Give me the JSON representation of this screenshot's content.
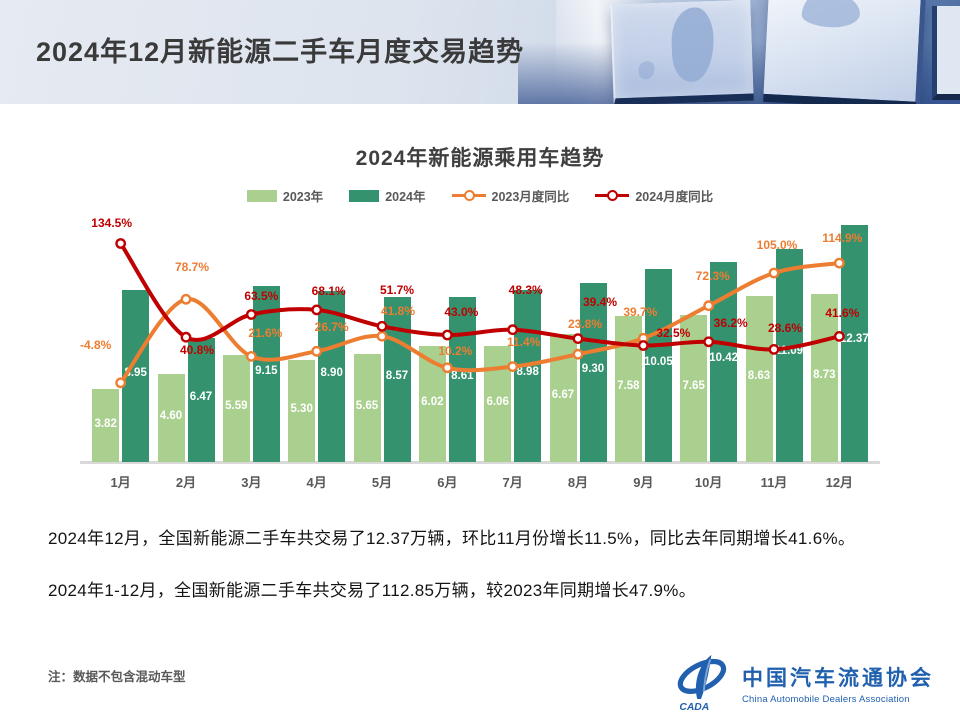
{
  "header": {
    "title": "2024年12月新能源二手车月度交易趋势"
  },
  "chart": {
    "title": "2024年新能源乘用车趋势",
    "legend": [
      {
        "label": "2023年",
        "type": "swatch",
        "color": "#A9D08E"
      },
      {
        "label": "2024年",
        "type": "swatch",
        "color": "#35926E"
      },
      {
        "label": "2023月度同比",
        "type": "line",
        "color": "#ED7D31"
      },
      {
        "label": "2024月度同比",
        "type": "line",
        "color": "#C00000"
      }
    ]
  },
  "chart_data": {
    "type": "combo-bar-line",
    "categories": [
      "1月",
      "2月",
      "3月",
      "4月",
      "5月",
      "6月",
      "7月",
      "8月",
      "9月",
      "10月",
      "11月",
      "12月"
    ],
    "value_axis_hidden": true,
    "grid": false,
    "legend_position": "top",
    "series": [
      {
        "name": "2023年",
        "type": "bar",
        "color": "#A9D08E",
        "values": [
          3.82,
          4.6,
          5.59,
          5.3,
          5.65,
          6.02,
          6.06,
          6.67,
          7.58,
          7.65,
          8.63,
          8.73
        ],
        "labels": [
          "3.82",
          "4.60",
          "5.59",
          "5.30",
          "5.65",
          "6.02",
          "6.06",
          "6.67",
          "7.58",
          "7.65",
          "8.63",
          "8.73"
        ]
      },
      {
        "name": "2024年",
        "type": "bar",
        "color": "#35926E",
        "values": [
          8.95,
          6.47,
          9.15,
          8.9,
          8.57,
          8.61,
          8.98,
          9.3,
          10.05,
          10.42,
          11.09,
          12.37
        ],
        "labels": [
          "8.95",
          "6.47",
          "9.15",
          "8.90",
          "8.57",
          "8.61",
          "8.98",
          "9.30",
          "10.05",
          "10.42",
          "11.09",
          "12.37"
        ]
      },
      {
        "name": "2023月度同比",
        "type": "line",
        "color": "#ED7D31",
        "values": [
          -4.8,
          78.7,
          21.6,
          26.7,
          41.8,
          10.2,
          11.4,
          23.8,
          39.7,
          72.3,
          105.0,
          114.9
        ],
        "labels": [
          "-4.8%",
          "78.7%",
          "21.6%",
          "26.7%",
          "41.8%",
          "10.2%",
          "11.4%",
          "23.8%",
          "39.7%",
          "72.3%",
          "105.0%",
          "114.9%"
        ],
        "label_dx": [
          -25,
          6,
          14,
          15,
          16,
          8,
          11,
          7,
          -3,
          4,
          3,
          3
        ],
        "label_dy": [
          -37,
          -31,
          -22,
          -23,
          -24,
          -16,
          -24,
          -29,
          -25,
          -29,
          -27,
          -24
        ]
      },
      {
        "name": "2024月度同比",
        "type": "line",
        "color": "#C00000",
        "values": [
          134.5,
          40.8,
          63.5,
          68.1,
          51.7,
          43.0,
          48.3,
          39.4,
          32.5,
          36.2,
          28.6,
          41.6
        ],
        "labels": [
          "134.5%",
          "40.8%",
          "63.5%",
          "68.1%",
          "51.7%",
          "43.0%",
          "48.3%",
          "39.4%",
          "32.5%",
          "36.2%",
          "28.6%",
          "41.6%"
        ],
        "label_dx": [
          -9,
          11,
          10,
          12,
          15,
          14,
          13,
          22,
          30,
          22,
          11,
          3
        ],
        "label_dy": [
          -20,
          14,
          -18,
          -18,
          -35,
          -22,
          -39,
          -36,
          -12,
          -18,
          -20,
          -22
        ]
      }
    ],
    "bar_unit": "万辆",
    "line_unit": "%"
  },
  "body": {
    "line1": "2024年12月，全国新能源二手车共交易了12.37万辆，环比11月份增长11.5%，同比去年同期增长41.6%。",
    "line2": "2024年1-12月，全国新能源二手车共交易了112.85万辆，较2023年同期增长47.9%。"
  },
  "footer": {
    "note": "注：数据不包含混动车型",
    "logo_cn": "中国汽车流通协会",
    "logo_en": "China Automobile Dealers Association",
    "logo_abbr": "CADA",
    "logo_color": "#2060ae"
  }
}
